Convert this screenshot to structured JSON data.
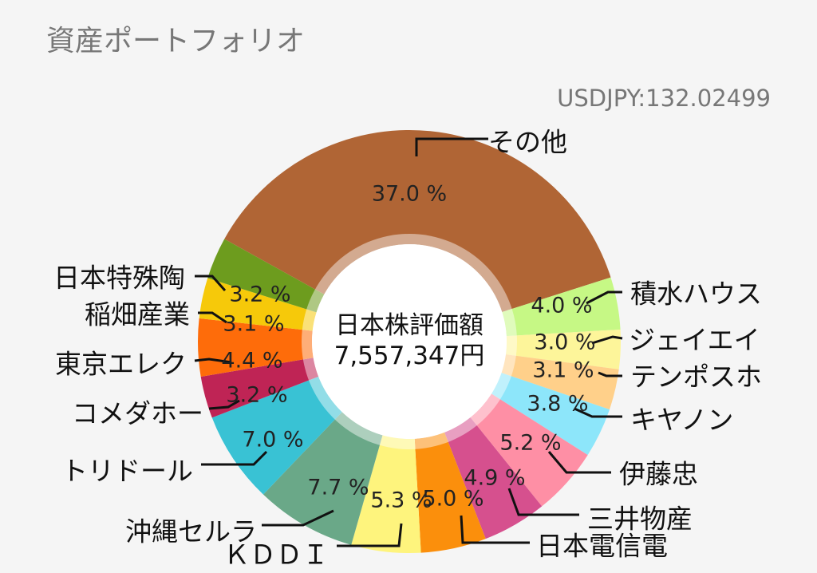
{
  "header": {
    "title": "資産ポートフォリオ",
    "rate": "USDJPY:132.02499"
  },
  "center": {
    "line1": "日本株評価額",
    "line2": "7,557,347円"
  },
  "chart_data": {
    "type": "pie",
    "title": "資産ポートフォリオ",
    "categories": [
      "その他",
      "積水ハウス",
      "ジェイエイ",
      "テンポスホ",
      "キヤノン",
      "伊藤忠",
      "三井物産",
      "日本電信電",
      "ＫＤＤＩ",
      "沖縄セルラ",
      "トリドール",
      "コメダホー",
      "東京エレク",
      "稲畑産業",
      "日本特殊陶"
    ],
    "values": [
      37.0,
      4.0,
      3.0,
      3.1,
      3.8,
      5.2,
      4.9,
      5.0,
      5.3,
      7.7,
      7.0,
      3.2,
      4.4,
      3.1,
      3.2
    ],
    "value_labels": [
      "37.0 %",
      "4.0 %",
      "3.0 %",
      "3.1 %",
      "3.8 %",
      "5.2 %",
      "4.9 %",
      "5.0 %",
      "5.3 %",
      "7.7 %",
      "7.0 %",
      "3.2 %",
      "4.4 %",
      "3.1 %",
      "3.2 %"
    ],
    "colors": [
      "#b06535",
      "#c6f885",
      "#fdf59a",
      "#ffd08a",
      "#8de6fa",
      "#fe8fa5",
      "#d6508e",
      "#fb8f0c",
      "#fef47d",
      "#6aa888",
      "#39c2d4",
      "#bf2455",
      "#fe6c0a",
      "#f6c90a",
      "#6d9c1e"
    ]
  }
}
